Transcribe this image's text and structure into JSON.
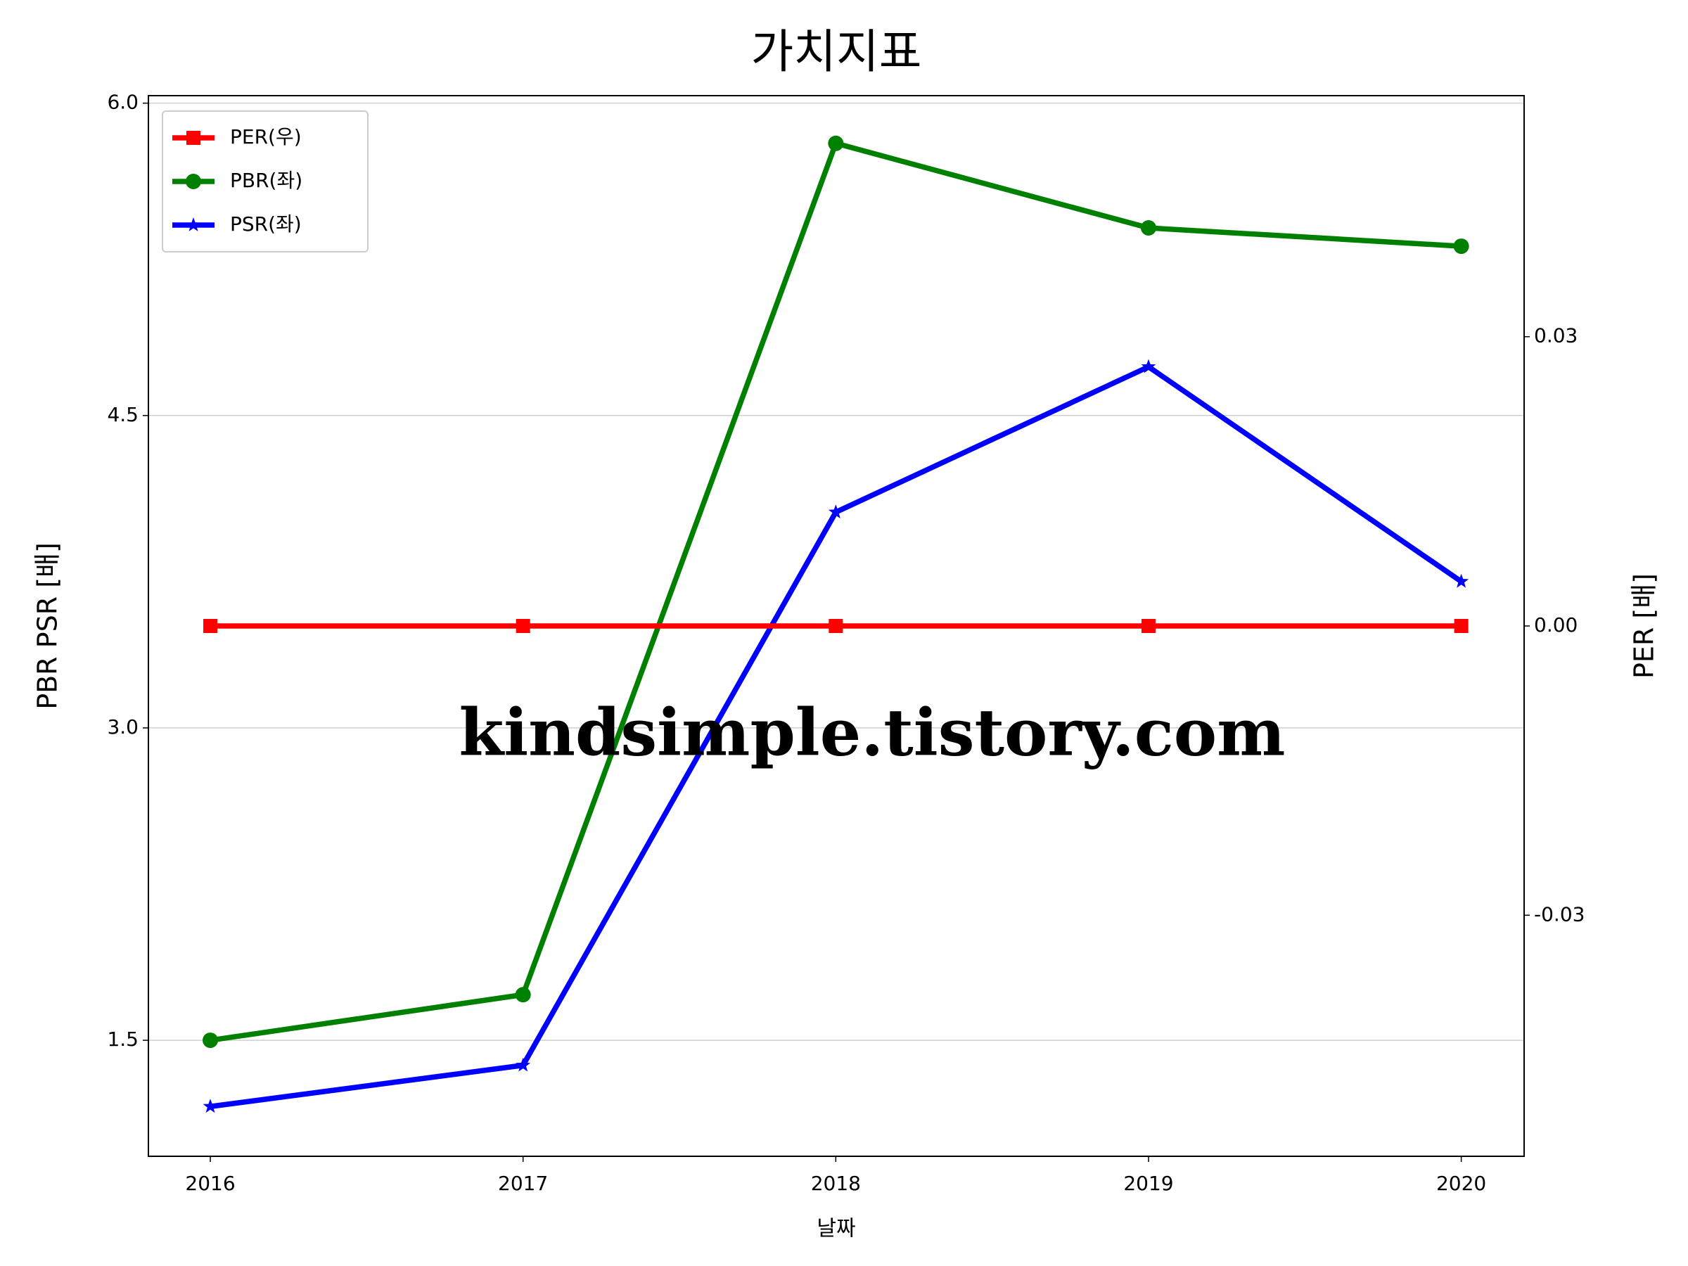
{
  "chart_data": {
    "type": "line",
    "title": "가치지표",
    "xlabel": "날짜",
    "ylabel": "PBR PSR [배]",
    "y2label": "PER [배]",
    "ylabel_color": "#008000",
    "y2label_color": "#ff0000",
    "watermark": "kindsimple.tistory.com",
    "x": [
      2016,
      2017,
      2018,
      2019,
      2020
    ],
    "xlim": [
      2015.802,
      2020.201
    ],
    "xticks": [
      2016,
      2017,
      2018,
      2019,
      2020
    ],
    "ylim": [
      0.943,
      6.036
    ],
    "yticks": [
      {
        "value": 1.5,
        "label": "1.5"
      },
      {
        "value": 3,
        "label": "3.0"
      },
      4.5,
      {
        "value": 6,
        "label": "6.0"
      }
    ],
    "y2lim": [
      -0.055,
      0.055
    ],
    "y2ticks": [
      -0.03,
      {
        "value": 0,
        "label": "0.00"
      },
      0.03
    ],
    "grid": true,
    "legend": "upper left",
    "series": [
      {
        "name": "PER(우)",
        "color": "#ff0000",
        "marker": "square",
        "axis": "y2",
        "values": [
          0,
          0,
          0,
          0,
          0
        ]
      },
      {
        "name": "PBR(좌)",
        "color": "#008000",
        "marker": "circle",
        "values": [
          1.5,
          1.719,
          5.807,
          5.401,
          5.313
        ]
      },
      {
        "name": "PSR(좌)",
        "color": "#0000ff",
        "marker": "star",
        "values": [
          1.182,
          1.38,
          4.036,
          4.734,
          3.703
        ]
      }
    ]
  }
}
